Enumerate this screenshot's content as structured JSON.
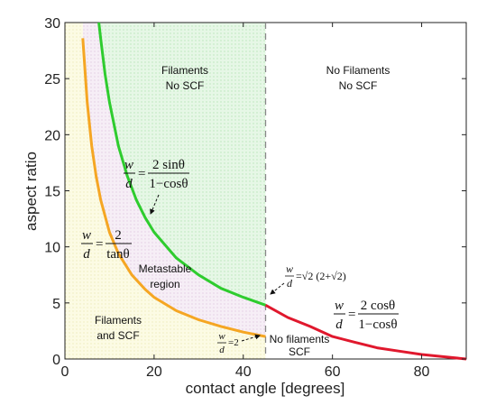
{
  "chart_data": {
    "type": "line",
    "xlabel": "contact angle [degrees]",
    "ylabel": "aspect ratio",
    "xlim": [
      0,
      90
    ],
    "ylim": [
      0,
      30
    ],
    "xticks": [
      "0",
      "20",
      "40",
      "60",
      "80"
    ],
    "yticks": [
      "0",
      "5",
      "10",
      "15",
      "20",
      "25",
      "30"
    ],
    "grid": false,
    "vertical_reference_line": {
      "x": 45,
      "style": "dashed",
      "color": "#888888"
    },
    "series": [
      {
        "color": "#f5a623",
        "x": [
          4,
          5,
          6,
          7,
          8,
          10,
          12,
          15,
          18,
          20,
          25,
          30,
          35,
          40,
          45
        ],
        "y": [
          28.6,
          22.9,
          19.0,
          16.3,
          14.2,
          11.3,
          9.4,
          7.5,
          6.2,
          5.5,
          4.3,
          3.5,
          2.9,
          2.4,
          2.0
        ]
      },
      {
        "color": "#2ecc2e",
        "x": [
          7.6,
          8,
          9,
          10,
          12,
          14,
          16,
          18,
          20,
          25,
          30,
          35,
          40,
          45
        ],
        "y": [
          30.0,
          28.6,
          25.4,
          22.9,
          19.0,
          16.3,
          14.2,
          12.6,
          11.3,
          9.0,
          7.5,
          6.3,
          5.5,
          4.8
        ]
      },
      {
        "color": "#e0182d",
        "x": [
          45,
          50,
          55,
          60,
          65,
          70,
          75,
          80,
          85,
          90
        ],
        "y": [
          4.8,
          3.7,
          2.9,
          2.0,
          1.5,
          1.0,
          0.7,
          0.4,
          0.2,
          0.0
        ]
      }
    ],
    "regions": [
      {
        "id": "filaments-no-scf",
        "lines": [
          "Filaments",
          "No SCF"
        ]
      },
      {
        "id": "no-filaments-no-scf",
        "lines": [
          "No Filaments",
          "No SCF"
        ]
      },
      {
        "id": "metastable",
        "lines": [
          "Metastable",
          "region"
        ]
      },
      {
        "id": "filaments-and-scf",
        "lines": [
          "Filaments",
          "and SCF"
        ]
      },
      {
        "id": "no-filaments-scf",
        "lines": [
          "No filaments",
          "SCF"
        ]
      }
    ],
    "annotations": {
      "green_eq": {
        "lhs_num": "w",
        "lhs_den": "d",
        "num": "2 sinθ",
        "den": "1−cosθ"
      },
      "orange_eq": {
        "lhs_num": "w",
        "lhs_den": "d",
        "num": "2",
        "den": "tanθ"
      },
      "red_eq": {
        "lhs_num": "w",
        "lhs_den": "d",
        "num": "2 cosθ",
        "den": "1−cosθ"
      },
      "junction_eq": {
        "lhs_num": "w",
        "lhs_den": "d",
        "rhs": "=√2 (2+√2)"
      },
      "low_eq": {
        "lhs_num": "w",
        "lhs_den": "d",
        "rhs": "=2"
      }
    }
  }
}
